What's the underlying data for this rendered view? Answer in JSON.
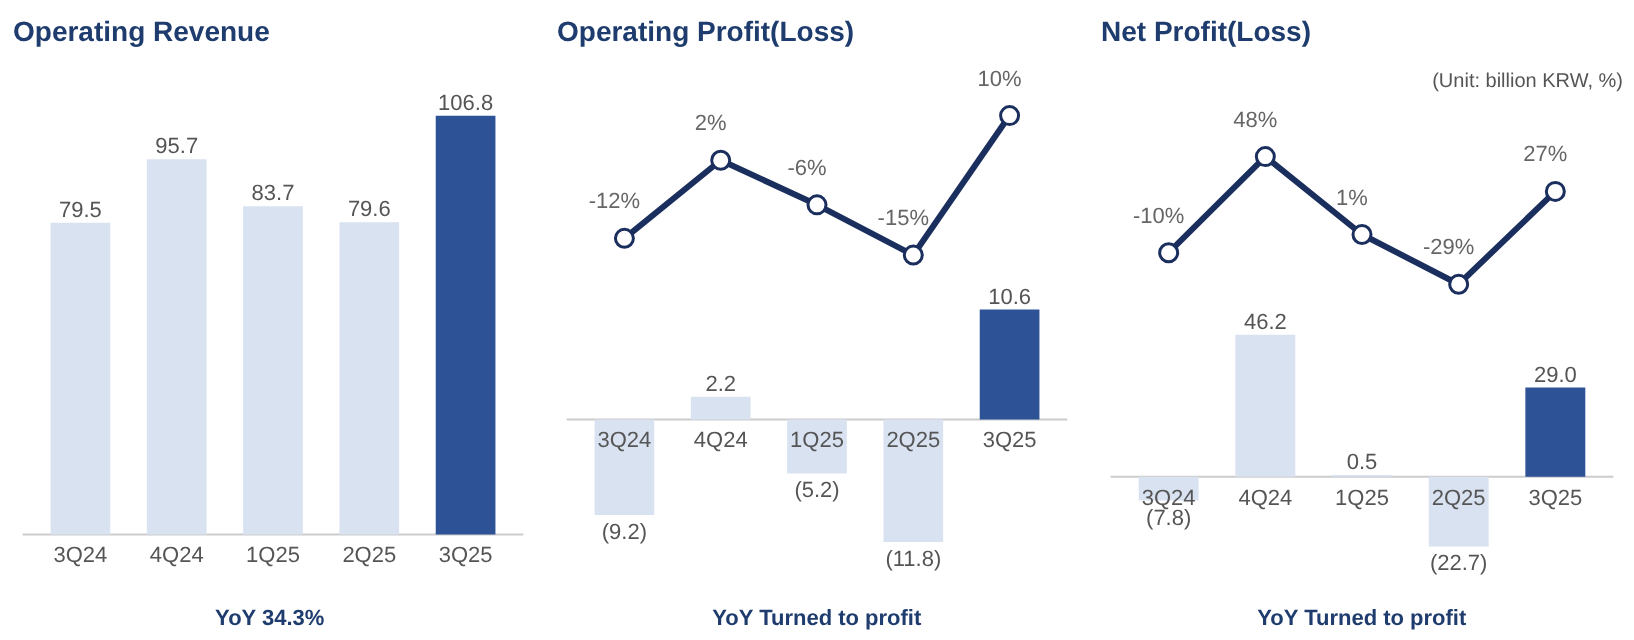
{
  "chart_data": [
    {
      "type": "bar",
      "title": "Operating Revenue",
      "categories": [
        "3Q24",
        "4Q24",
        "1Q25",
        "2Q25",
        "3Q25"
      ],
      "annotations": [
        "YoY  34.3%"
      ],
      "series": [
        {
          "colors": [
            "#d9e2f1",
            "#d9e2f1",
            "#d9e2f1",
            "#d9e2f1",
            "#2d5296"
          ],
          "values": [
            79.5,
            95.7,
            83.7,
            79.6,
            106.8
          ],
          "value_labels": [
            "79.5",
            "95.7",
            "83.7",
            "79.6",
            "106.8"
          ]
        }
      ]
    },
    {
      "type": "line",
      "title": "Operating Profit(Loss)",
      "categories": [
        null,
        null,
        null,
        null,
        null
      ],
      "marker": "circle",
      "series": [
        {
          "color": "#1b2f5e",
          "values": [
            -12,
            2,
            -6,
            -15,
            10
          ],
          "value_labels": [
            "-12%",
            "2%",
            "-6%",
            "-15%",
            "10%"
          ]
        }
      ]
    },
    {
      "type": "bar",
      "categories": [
        "3Q24",
        "4Q24",
        "1Q25",
        "2Q25",
        "3Q25"
      ],
      "annotations": [
        "YoY Turned to profit"
      ],
      "series": [
        {
          "colors": [
            "#d9e2f1",
            "#d9e2f1",
            "#d9e2f1",
            "#d9e2f1",
            "#2d5296"
          ],
          "values": [
            -9.2,
            2.2,
            -5.2,
            -11.8,
            10.6
          ],
          "value_labels": [
            "(9.2)",
            "2.2",
            "(5.2)",
            "(11.8)",
            "10.6"
          ]
        }
      ]
    },
    {
      "type": "line",
      "title": "Net Profit(Loss)",
      "annotations": [
        "(Unit: billion KRW, %)"
      ],
      "categories": [
        null,
        null,
        null,
        null,
        null
      ],
      "marker": "circle",
      "series": [
        {
          "color": "#1b2f5e",
          "values": [
            -10,
            48,
            1,
            -29,
            27
          ],
          "value_labels": [
            "-10%",
            "48%",
            "1%",
            "-29%",
            "27%"
          ]
        }
      ]
    },
    {
      "type": "bar",
      "categories": [
        "3Q24",
        "4Q24",
        "1Q25",
        "2Q25",
        "3Q25"
      ],
      "annotations": [
        "YoY Turned to profit"
      ],
      "series": [
        {
          "colors": [
            "#d9e2f1",
            "#d9e2f1",
            "#d9e2f1",
            "#d9e2f1",
            "#2d5296"
          ],
          "values": [
            -7.8,
            46.2,
            0.5,
            -22.7,
            29.0
          ],
          "value_labels": [
            "(7.8)",
            "46.2",
            "0.5",
            "(22.7)",
            "29.0"
          ]
        }
      ]
    }
  ]
}
